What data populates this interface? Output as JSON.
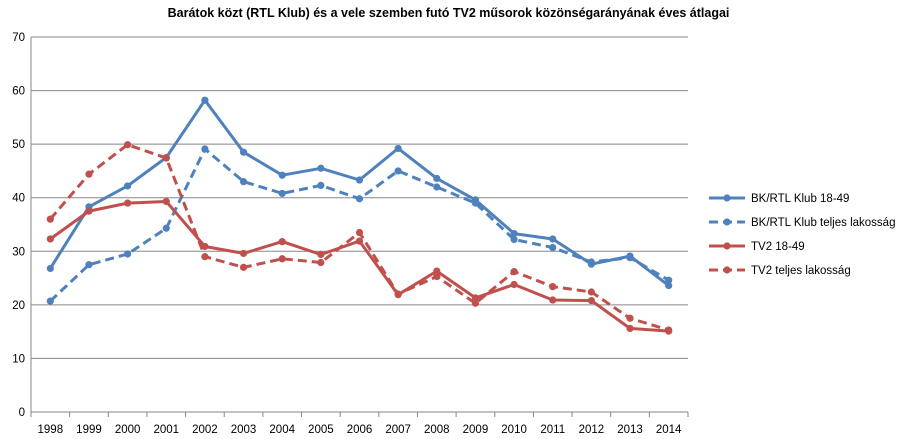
{
  "chart_data": {
    "type": "line",
    "title": "Barátok közt (RTL Klub) és a vele szemben futó TV2 műsorok közönségarányának éves átlagai",
    "xlabel": "",
    "ylabel": "",
    "categories": [
      "1998",
      "1999",
      "2000",
      "2001",
      "2002",
      "2003",
      "2004",
      "2005",
      "2006",
      "2007",
      "2008",
      "2009",
      "2010",
      "2011",
      "2012",
      "2013",
      "2014"
    ],
    "ylim": [
      0,
      70
    ],
    "yticks": [
      0,
      10,
      20,
      30,
      40,
      50,
      60,
      70
    ],
    "grid": true,
    "legend_position": "right",
    "series": [
      {
        "name": "BK/RTL Klub 18-49",
        "color": "#4F81BD",
        "dashed": false,
        "values": [
          26.8,
          38.3,
          42.2,
          47.5,
          58.2,
          48.5,
          44.2,
          45.5,
          43.3,
          49.2,
          43.6,
          39.6,
          33.3,
          32.3,
          27.6,
          29.1,
          23.6
        ]
      },
      {
        "name": "BK/RTL Klub teljes lakosság",
        "color": "#4F81BD",
        "dashed": true,
        "values": [
          20.7,
          27.5,
          29.5,
          34.3,
          49.1,
          43.0,
          40.8,
          42.3,
          39.8,
          45.0,
          42.0,
          39.0,
          32.2,
          30.7,
          28.0,
          28.8,
          24.6
        ]
      },
      {
        "name": "TV2 18-49",
        "color": "#C0504D",
        "dashed": false,
        "values": [
          32.3,
          37.5,
          39.0,
          39.3,
          30.9,
          29.6,
          31.8,
          29.4,
          31.9,
          21.9,
          26.3,
          21.3,
          23.8,
          20.9,
          20.8,
          15.6,
          15.1
        ]
      },
      {
        "name": "TV2 teljes lakosság",
        "color": "#C0504D",
        "dashed": true,
        "values": [
          36.0,
          44.4,
          49.9,
          47.4,
          29.0,
          27.0,
          28.6,
          27.9,
          33.5,
          22.0,
          25.3,
          20.3,
          26.2,
          23.4,
          22.4,
          17.5,
          15.3
        ]
      }
    ]
  }
}
